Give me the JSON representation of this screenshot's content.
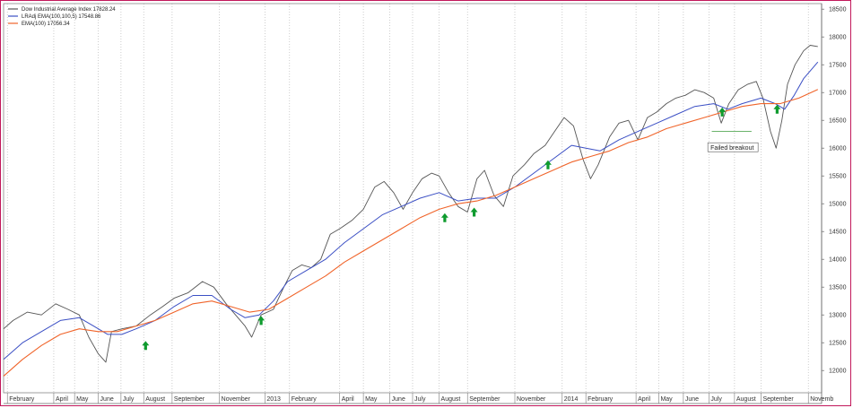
{
  "chart_data": {
    "type": "line",
    "title": "",
    "legend": [
      {
        "label": "Dow Industrial Average Index 17828.24",
        "color": "#555555"
      },
      {
        "label": "LRAdj EMA(100,100,5) 17548.86",
        "color": "#3b4fc4"
      },
      {
        "label": "EMA(100) 17056.34",
        "color": "#f0642a"
      }
    ],
    "legend_position": "top-left",
    "y_ticks": [
      12000,
      12500,
      13000,
      13500,
      14000,
      14500,
      15000,
      15500,
      16000,
      16500,
      17000,
      17500,
      18000,
      18500
    ],
    "y_tick_labels": [
      "12000",
      "12500",
      "13000",
      "13500",
      "14000",
      "14500",
      "15000",
      "15500",
      "16000",
      "16500",
      "17000",
      "17500",
      "18000",
      "18500"
    ],
    "ylim": [
      11600,
      18600
    ],
    "grid": true,
    "x_labels": [
      {
        "t": 4,
        "label": "February"
      },
      {
        "t": 53,
        "label": "April"
      },
      {
        "t": 75,
        "label": "May"
      },
      {
        "t": 100,
        "label": "June"
      },
      {
        "t": 124,
        "label": "July"
      },
      {
        "t": 148,
        "label": "August"
      },
      {
        "t": 178,
        "label": "September"
      },
      {
        "t": 228,
        "label": "November"
      },
      {
        "t": 276,
        "label": "2013"
      },
      {
        "t": 302,
        "label": "February"
      },
      {
        "t": 355,
        "label": "April"
      },
      {
        "t": 380,
        "label": "May"
      },
      {
        "t": 408,
        "label": "June"
      },
      {
        "t": 432,
        "label": "July"
      },
      {
        "t": 460,
        "label": "August"
      },
      {
        "t": 490,
        "label": "September"
      },
      {
        "t": 540,
        "label": "November"
      },
      {
        "t": 590,
        "label": "2014"
      },
      {
        "t": 615,
        "label": "February"
      },
      {
        "t": 668,
        "label": "April"
      },
      {
        "t": 692,
        "label": "May"
      },
      {
        "t": 718,
        "label": "June"
      },
      {
        "t": 745,
        "label": "July"
      },
      {
        "t": 772,
        "label": "August"
      },
      {
        "t": 800,
        "label": "September"
      },
      {
        "t": 850,
        "label": "Novemb"
      }
    ],
    "xlim": [
      0,
      864
    ],
    "series": [
      {
        "name": "Dow Industrial Average Index 17828.24",
        "color": "#555555",
        "points": [
          [
            0,
            12750
          ],
          [
            10,
            12900
          ],
          [
            25,
            13050
          ],
          [
            40,
            13000
          ],
          [
            55,
            13200
          ],
          [
            68,
            13100
          ],
          [
            80,
            13000
          ],
          [
            90,
            12600
          ],
          [
            100,
            12300
          ],
          [
            108,
            12150
          ],
          [
            114,
            12700
          ],
          [
            125,
            12750
          ],
          [
            140,
            12800
          ],
          [
            155,
            13000
          ],
          [
            168,
            13150
          ],
          [
            180,
            13300
          ],
          [
            195,
            13400
          ],
          [
            210,
            13600
          ],
          [
            222,
            13500
          ],
          [
            235,
            13200
          ],
          [
            245,
            13000
          ],
          [
            255,
            12800
          ],
          [
            262,
            12600
          ],
          [
            272,
            13000
          ],
          [
            285,
            13100
          ],
          [
            296,
            13500
          ],
          [
            305,
            13800
          ],
          [
            315,
            13900
          ],
          [
            325,
            13850
          ],
          [
            335,
            14000
          ],
          [
            345,
            14450
          ],
          [
            355,
            14550
          ],
          [
            368,
            14700
          ],
          [
            380,
            14900
          ],
          [
            392,
            15300
          ],
          [
            402,
            15400
          ],
          [
            412,
            15200
          ],
          [
            422,
            14900
          ],
          [
            432,
            15200
          ],
          [
            442,
            15450
          ],
          [
            452,
            15550
          ],
          [
            460,
            15500
          ],
          [
            470,
            15200
          ],
          [
            480,
            14950
          ],
          [
            490,
            14850
          ],
          [
            500,
            15450
          ],
          [
            508,
            15600
          ],
          [
            518,
            15150
          ],
          [
            528,
            14950
          ],
          [
            538,
            15500
          ],
          [
            550,
            15700
          ],
          [
            560,
            15900
          ],
          [
            572,
            16050
          ],
          [
            582,
            16300
          ],
          [
            592,
            16550
          ],
          [
            602,
            16400
          ],
          [
            612,
            15800
          ],
          [
            620,
            15450
          ],
          [
            628,
            15700
          ],
          [
            640,
            16200
          ],
          [
            650,
            16450
          ],
          [
            660,
            16500
          ],
          [
            670,
            16150
          ],
          [
            680,
            16550
          ],
          [
            690,
            16650
          ],
          [
            700,
            16800
          ],
          [
            710,
            16900
          ],
          [
            720,
            16950
          ],
          [
            730,
            17050
          ],
          [
            740,
            17000
          ],
          [
            750,
            16900
          ],
          [
            758,
            16450
          ],
          [
            766,
            16800
          ],
          [
            776,
            17050
          ],
          [
            786,
            17150
          ],
          [
            795,
            17200
          ],
          [
            802,
            16900
          ],
          [
            810,
            16300
          ],
          [
            816,
            16000
          ],
          [
            822,
            16500
          ],
          [
            828,
            17150
          ],
          [
            836,
            17500
          ],
          [
            845,
            17750
          ],
          [
            852,
            17850
          ],
          [
            860,
            17828
          ]
        ]
      },
      {
        "name": "LRAdj EMA(100,100,5) 17548.86",
        "color": "#3b4fc4",
        "points": [
          [
            0,
            12200
          ],
          [
            20,
            12500
          ],
          [
            40,
            12700
          ],
          [
            60,
            12900
          ],
          [
            80,
            12950
          ],
          [
            95,
            12800
          ],
          [
            110,
            12650
          ],
          [
            125,
            12650
          ],
          [
            140,
            12750
          ],
          [
            160,
            12900
          ],
          [
            180,
            13150
          ],
          [
            200,
            13350
          ],
          [
            220,
            13350
          ],
          [
            240,
            13100
          ],
          [
            255,
            12950
          ],
          [
            270,
            13000
          ],
          [
            285,
            13250
          ],
          [
            300,
            13600
          ],
          [
            320,
            13800
          ],
          [
            340,
            14000
          ],
          [
            360,
            14300
          ],
          [
            380,
            14550
          ],
          [
            400,
            14800
          ],
          [
            420,
            14950
          ],
          [
            440,
            15100
          ],
          [
            460,
            15200
          ],
          [
            480,
            15050
          ],
          [
            500,
            15100
          ],
          [
            520,
            15100
          ],
          [
            540,
            15300
          ],
          [
            560,
            15550
          ],
          [
            580,
            15800
          ],
          [
            600,
            16050
          ],
          [
            615,
            16000
          ],
          [
            630,
            15950
          ],
          [
            650,
            16150
          ],
          [
            670,
            16300
          ],
          [
            690,
            16450
          ],
          [
            710,
            16600
          ],
          [
            730,
            16750
          ],
          [
            750,
            16800
          ],
          [
            765,
            16700
          ],
          [
            780,
            16800
          ],
          [
            800,
            16900
          ],
          [
            815,
            16800
          ],
          [
            825,
            16700
          ],
          [
            835,
            16950
          ],
          [
            845,
            17250
          ],
          [
            860,
            17549
          ]
        ]
      },
      {
        "name": "EMA(100) 17056.34",
        "color": "#f0642a",
        "points": [
          [
            0,
            11900
          ],
          [
            20,
            12200
          ],
          [
            40,
            12450
          ],
          [
            60,
            12650
          ],
          [
            80,
            12750
          ],
          [
            100,
            12700
          ],
          [
            120,
            12700
          ],
          [
            140,
            12800
          ],
          [
            160,
            12900
          ],
          [
            180,
            13050
          ],
          [
            200,
            13200
          ],
          [
            220,
            13250
          ],
          [
            240,
            13150
          ],
          [
            260,
            13050
          ],
          [
            280,
            13100
          ],
          [
            300,
            13300
          ],
          [
            320,
            13500
          ],
          [
            340,
            13700
          ],
          [
            360,
            13950
          ],
          [
            380,
            14150
          ],
          [
            400,
            14350
          ],
          [
            420,
            14550
          ],
          [
            440,
            14750
          ],
          [
            460,
            14900
          ],
          [
            480,
            15000
          ],
          [
            500,
            15050
          ],
          [
            520,
            15150
          ],
          [
            540,
            15300
          ],
          [
            560,
            15450
          ],
          [
            580,
            15600
          ],
          [
            600,
            15750
          ],
          [
            620,
            15850
          ],
          [
            640,
            15950
          ],
          [
            660,
            16100
          ],
          [
            680,
            16200
          ],
          [
            700,
            16350
          ],
          [
            720,
            16450
          ],
          [
            740,
            16550
          ],
          [
            760,
            16650
          ],
          [
            780,
            16750
          ],
          [
            800,
            16800
          ],
          [
            820,
            16800
          ],
          [
            840,
            16900
          ],
          [
            860,
            17056
          ]
        ]
      }
    ],
    "markers": [
      {
        "t": 150,
        "y": 12450
      },
      {
        "t": 272,
        "y": 12900
      },
      {
        "t": 466,
        "y": 14750
      },
      {
        "t": 497,
        "y": 14850
      },
      {
        "t": 575,
        "y": 15700
      },
      {
        "t": 759,
        "y": 16650
      },
      {
        "t": 817,
        "y": 16700
      }
    ],
    "marker_color": "#0f9b2e",
    "annotation": {
      "text": "Failed breakout",
      "t": 777,
      "y": 16000,
      "line_from_t": 748,
      "line_to_t": 790,
      "line_y": 16300
    }
  }
}
